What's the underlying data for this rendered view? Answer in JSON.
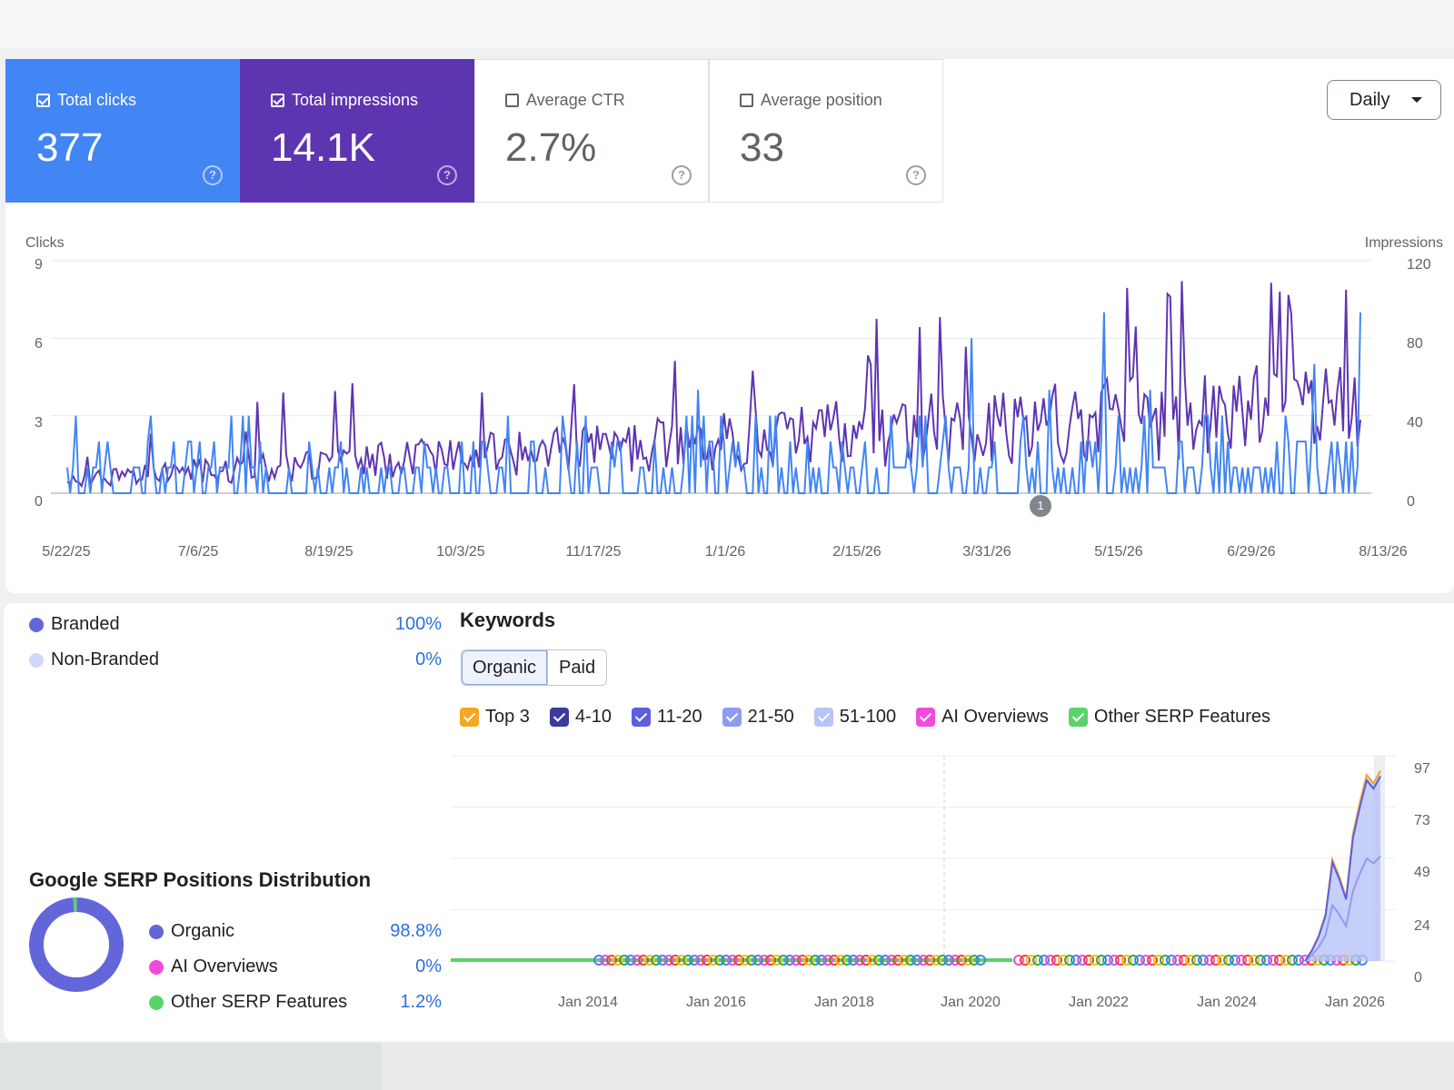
{
  "metrics": [
    {
      "label": "Total clicks",
      "value": "377",
      "checked": true,
      "color": "#4285f4"
    },
    {
      "label": "Total impressions",
      "value": "14.1K",
      "checked": true,
      "color": "#5e35b1"
    },
    {
      "label": "Average CTR",
      "value": "2.7%",
      "checked": false
    },
    {
      "label": "Average position",
      "value": "33",
      "checked": false
    }
  ],
  "period_select": {
    "value": "Daily"
  },
  "annotation_marker": "1",
  "chart_data": [
    {
      "type": "line",
      "ylabel": "Clicks",
      "y2label": "Impressions",
      "yticks": [
        "9",
        "6",
        "3",
        "0"
      ],
      "y2ticks": [
        "120",
        "80",
        "40",
        "0"
      ],
      "ylim": [
        0,
        9
      ],
      "y2lim": [
        0,
        120
      ],
      "xticks": [
        "5/22/25",
        "7/6/25",
        "8/19/25",
        "10/3/25",
        "11/17/25",
        "1/1/26",
        "2/15/26",
        "3/31/26",
        "5/15/26",
        "6/29/26",
        "8/13/26"
      ],
      "series": [
        {
          "name": "Clicks",
          "color": "#4285f4",
          "axis": "left"
        },
        {
          "name": "Impressions",
          "color": "#5e35b1",
          "axis": "right"
        }
      ],
      "num_points": 450,
      "legend": "none",
      "grid": true
    },
    {
      "type": "area",
      "title": "Keywords",
      "yticks": [
        "97",
        "73",
        "49",
        "24",
        "0"
      ],
      "ylim": [
        0,
        97
      ],
      "xticks": [
        "Jan 2014",
        "Jan 2016",
        "Jan 2018",
        "Jan 2020",
        "Jan 2022",
        "Jan 2024",
        "Jan 2026"
      ],
      "series": [
        {
          "name": "Top 3",
          "color": "#f5a623"
        },
        {
          "name": "4-10",
          "color": "#3d3a9e"
        },
        {
          "name": "11-20",
          "color": "#5b5fe0"
        },
        {
          "name": "21-50",
          "color": "#8e9cf0"
        },
        {
          "name": "51-100",
          "color": "#b8c3f7"
        },
        {
          "name": "AI Overviews",
          "color": "#f24bdb"
        },
        {
          "name": "Other SERP Features",
          "color": "#5ad36b"
        }
      ],
      "recent_values": [
        0,
        5,
        12,
        22,
        48,
        40,
        30,
        60,
        75,
        88,
        84,
        90
      ]
    }
  ],
  "branded": {
    "items": [
      {
        "label": "Branded",
        "pct": "100%",
        "color": "#6266d9"
      },
      {
        "label": "Non-Branded",
        "pct": "0%",
        "color": "#cfd8fb"
      }
    ]
  },
  "keywords": {
    "title": "Keywords",
    "tabs": [
      "Organic",
      "Paid"
    ],
    "legend": [
      {
        "label": "Top 3",
        "color": "#f5a623"
      },
      {
        "label": "4-10",
        "color": "#3d3a9e"
      },
      {
        "label": "11-20",
        "color": "#5b5fe0"
      },
      {
        "label": "21-50",
        "color": "#8e9cf0"
      },
      {
        "label": "51-100",
        "color": "#b8c3f7"
      },
      {
        "label": "AI Overviews",
        "color": "#f24bdb"
      },
      {
        "label": "Other SERP Features",
        "color": "#5ad36b"
      }
    ]
  },
  "serp": {
    "title": "Google SERP Positions Distribution",
    "items": [
      {
        "label": "Organic",
        "pct": "98.8%",
        "color": "#6266d9",
        "value": 98.8
      },
      {
        "label": "AI Overviews",
        "pct": "0%",
        "color": "#f24bdb",
        "value": 0
      },
      {
        "label": "Other SERP Features",
        "pct": "1.2%",
        "color": "#5ad36b",
        "value": 1.2
      }
    ]
  }
}
